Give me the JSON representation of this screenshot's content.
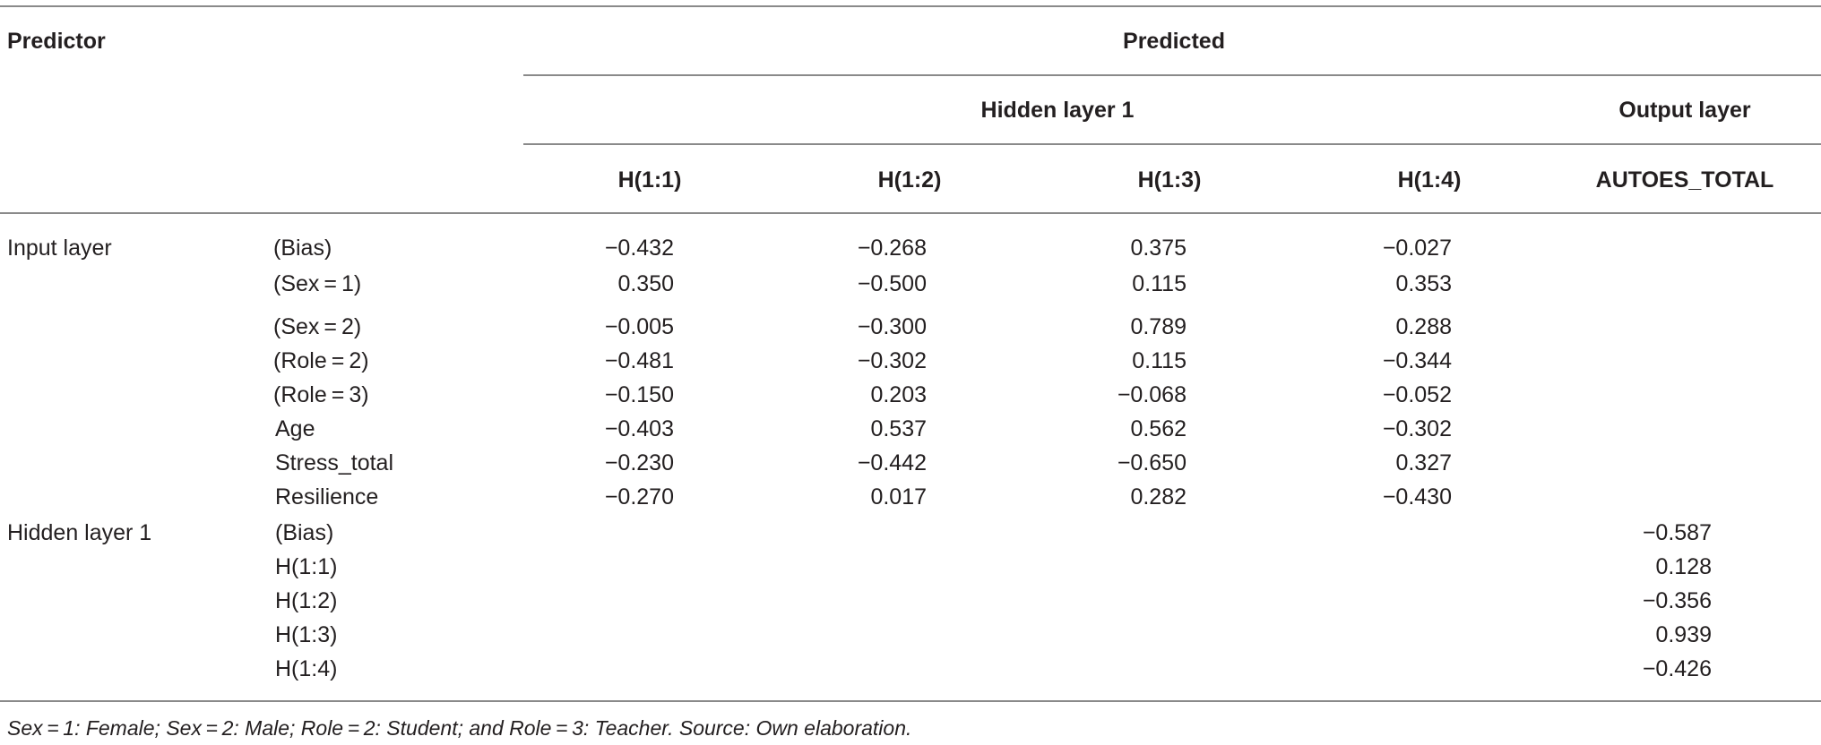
{
  "header": {
    "predictor": "Predictor",
    "predicted": "Predicted",
    "hidden_layer": "Hidden layer 1",
    "output_layer": "Output layer",
    "columns": [
      "H(1:1)",
      "H(1:2)",
      "H(1:3)",
      "H(1:4)",
      "AUTOES_TOTAL"
    ]
  },
  "groups": {
    "input": "Input layer",
    "hidden": "Hidden layer 1"
  },
  "rows": [
    {
      "label": "(Bias)",
      "values": [
        "−0.432",
        "−0.268",
        "0.375",
        "−0.027",
        ""
      ]
    },
    {
      "label": "(Sex = 1)",
      "values": [
        "0.350",
        "−0.500",
        "0.115",
        "0.353",
        ""
      ]
    },
    {
      "label": "(Sex = 2)",
      "values": [
        "−0.005",
        "−0.300",
        "0.789",
        "0.288",
        ""
      ]
    },
    {
      "label": "(Role = 2)",
      "values": [
        "−0.481",
        "−0.302",
        "0.115",
        "−0.344",
        ""
      ]
    },
    {
      "label": "(Role = 3)",
      "values": [
        "−0.150",
        "0.203",
        "−0.068",
        "−0.052",
        ""
      ]
    },
    {
      "label": "Age",
      "values": [
        "−0.403",
        "0.537",
        "0.562",
        "−0.302",
        ""
      ]
    },
    {
      "label": "Stress_total",
      "values": [
        "−0.230",
        "−0.442",
        "−0.650",
        "0.327",
        ""
      ]
    },
    {
      "label": "Resilience",
      "values": [
        "−0.270",
        "0.017",
        "0.282",
        "−0.430",
        ""
      ]
    },
    {
      "label": "(Bias)",
      "values": [
        "",
        "",
        "",
        "",
        "−0.587"
      ]
    },
    {
      "label": "H(1:1)",
      "values": [
        "",
        "",
        "",
        "",
        "0.128"
      ]
    },
    {
      "label": "H(1:2)",
      "values": [
        "",
        "",
        "",
        "",
        "−0.356"
      ]
    },
    {
      "label": "H(1:3)",
      "values": [
        "",
        "",
        "",
        "",
        "0.939"
      ]
    },
    {
      "label": "H(1:4)",
      "values": [
        "",
        "",
        "",
        "",
        "−0.426"
      ]
    }
  ],
  "footnote": "Sex = 1: Female; Sex = 2: Male; Role = 2: Student; and Role = 3: Teacher. Source: Own elaboration."
}
